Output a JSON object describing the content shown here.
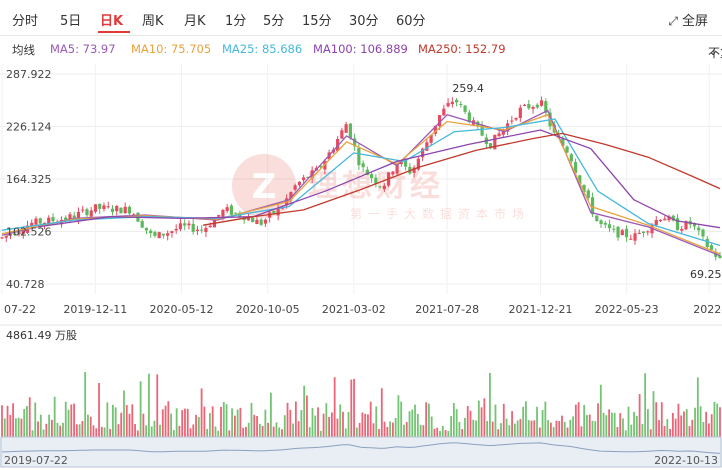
{
  "tabs": [
    "分时",
    "5日",
    "日K",
    "周K",
    "月K",
    "1分",
    "5分",
    "15分",
    "30分",
    "60分"
  ],
  "active_tab": "日K",
  "fullscreen_label": "全屏",
  "fullscreen_icon": "expand-icon",
  "ma_title": "均线",
  "ma": [
    {
      "label": "MA5: 73.97",
      "color": "#9b59b6"
    },
    {
      "label": "MA10: 75.705",
      "color": "#e8a33d"
    },
    {
      "label": "MA25: 85.686",
      "color": "#45b8dc"
    },
    {
      "label": "MA100: 106.889",
      "color": "#8e44ad"
    },
    {
      "label": "MA250: 152.79",
      "color": "#c0392b"
    }
  ],
  "adjust_label": "不复权",
  "adjust_icon": "chevron-down-icon",
  "watermark": {
    "title": "理想财经",
    "subtitle": "第一手大数据资本市场"
  },
  "chart_data": {
    "type": "candlestick",
    "y_ticks": [
      "287.922",
      "226.124",
      "164.325",
      "102.526",
      "40.728"
    ],
    "ylim": [
      40.728,
      287.922
    ],
    "x_ticks": [
      "07-22",
      "2019-12-11",
      "2020-05-12",
      "2020-10-05",
      "2021-03-02",
      "2021-07-28",
      "2021-12-21",
      "2022-05-23",
      "2022-"
    ],
    "annotations": {
      "high": "259.4",
      "last": "69.25"
    },
    "price_path": [
      [
        0,
        95
      ],
      [
        0.04,
        112
      ],
      [
        0.09,
        118
      ],
      [
        0.13,
        130
      ],
      [
        0.18,
        128
      ],
      [
        0.21,
        95
      ],
      [
        0.25,
        108
      ],
      [
        0.28,
        105
      ],
      [
        0.31,
        128
      ],
      [
        0.34,
        120
      ],
      [
        0.36,
        112
      ],
      [
        0.39,
        132
      ],
      [
        0.41,
        158
      ],
      [
        0.44,
        175
      ],
      [
        0.46,
        200
      ],
      [
        0.48,
        230
      ],
      [
        0.5,
        178
      ],
      [
        0.53,
        155
      ],
      [
        0.55,
        185
      ],
      [
        0.57,
        172
      ],
      [
        0.59,
        205
      ],
      [
        0.61,
        240
      ],
      [
        0.63,
        259
      ],
      [
        0.66,
        225
      ],
      [
        0.68,
        205
      ],
      [
        0.7,
        225
      ],
      [
        0.72,
        245
      ],
      [
        0.75,
        255
      ],
      [
        0.77,
        215
      ],
      [
        0.79,
        195
      ],
      [
        0.81,
        150
      ],
      [
        0.83,
        112
      ],
      [
        0.85,
        102
      ],
      [
        0.88,
        96
      ],
      [
        0.9,
        108
      ],
      [
        0.92,
        122
      ],
      [
        0.94,
        108
      ],
      [
        0.96,
        112
      ],
      [
        0.98,
        88
      ],
      [
        1.0,
        69
      ]
    ],
    "ma_paths": {
      "MA5": [
        [
          0,
          98
        ],
        [
          0.1,
          118
        ],
        [
          0.2,
          122
        ],
        [
          0.3,
          116
        ],
        [
          0.4,
          140
        ],
        [
          0.48,
          215
        ],
        [
          0.55,
          180
        ],
        [
          0.62,
          240
        ],
        [
          0.7,
          220
        ],
        [
          0.76,
          245
        ],
        [
          0.82,
          125
        ],
        [
          0.9,
          108
        ],
        [
          1.0,
          74
        ]
      ],
      "MA10": [
        [
          0,
          100
        ],
        [
          0.1,
          117
        ],
        [
          0.2,
          121
        ],
        [
          0.3,
          117
        ],
        [
          0.4,
          138
        ],
        [
          0.48,
          208
        ],
        [
          0.55,
          182
        ],
        [
          0.62,
          232
        ],
        [
          0.7,
          222
        ],
        [
          0.76,
          240
        ],
        [
          0.82,
          132
        ],
        [
          0.9,
          110
        ],
        [
          1.0,
          76
        ]
      ],
      "MA25": [
        [
          0,
          104
        ],
        [
          0.1,
          116
        ],
        [
          0.2,
          120
        ],
        [
          0.3,
          118
        ],
        [
          0.4,
          132
        ],
        [
          0.49,
          195
        ],
        [
          0.56,
          185
        ],
        [
          0.63,
          220
        ],
        [
          0.7,
          225
        ],
        [
          0.77,
          235
        ],
        [
          0.83,
          150
        ],
        [
          0.9,
          112
        ],
        [
          1.0,
          86
        ]
      ],
      "MA100": [
        [
          0.05,
          108
        ],
        [
          0.15,
          120
        ],
        [
          0.25,
          118
        ],
        [
          0.35,
          120
        ],
        [
          0.45,
          150
        ],
        [
          0.55,
          185
        ],
        [
          0.65,
          205
        ],
        [
          0.75,
          222
        ],
        [
          0.82,
          200
        ],
        [
          0.88,
          140
        ],
        [
          0.94,
          115
        ],
        [
          1.0,
          107
        ]
      ],
      "MA250": [
        [
          0.28,
          110
        ],
        [
          0.35,
          120
        ],
        [
          0.42,
          128
        ],
        [
          0.5,
          152
        ],
        [
          0.58,
          178
        ],
        [
          0.66,
          198
        ],
        [
          0.74,
          212
        ],
        [
          0.78,
          218
        ],
        [
          0.84,
          205
        ],
        [
          0.9,
          190
        ],
        [
          0.96,
          168
        ],
        [
          1.0,
          153
        ]
      ]
    },
    "volume_label": "4861.49 万股",
    "range_start": "2019-07-22",
    "range_end": "2022-10-13"
  }
}
